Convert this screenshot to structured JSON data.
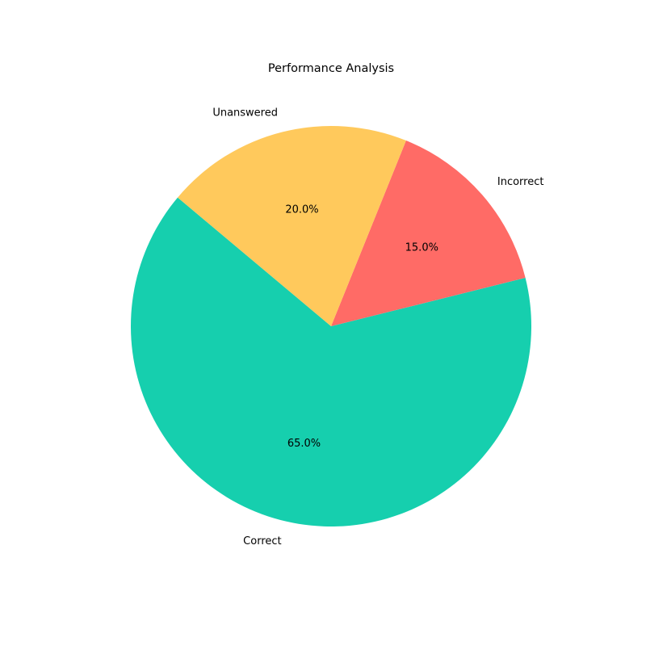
{
  "chart_data": {
    "type": "pie",
    "title": "Performance Analysis",
    "slices": [
      {
        "label": "Correct",
        "value": 65.0,
        "pct_label": "65.0%",
        "color": "#16cfae"
      },
      {
        "label": "Incorrect",
        "value": 15.0,
        "pct_label": "15.0%",
        "color": "#ff6b66"
      },
      {
        "label": "Unanswered",
        "value": 20.0,
        "pct_label": "20.0%",
        "color": "#ffc95c"
      }
    ],
    "start_angle_deg": 140,
    "direction": "counterclockwise"
  }
}
